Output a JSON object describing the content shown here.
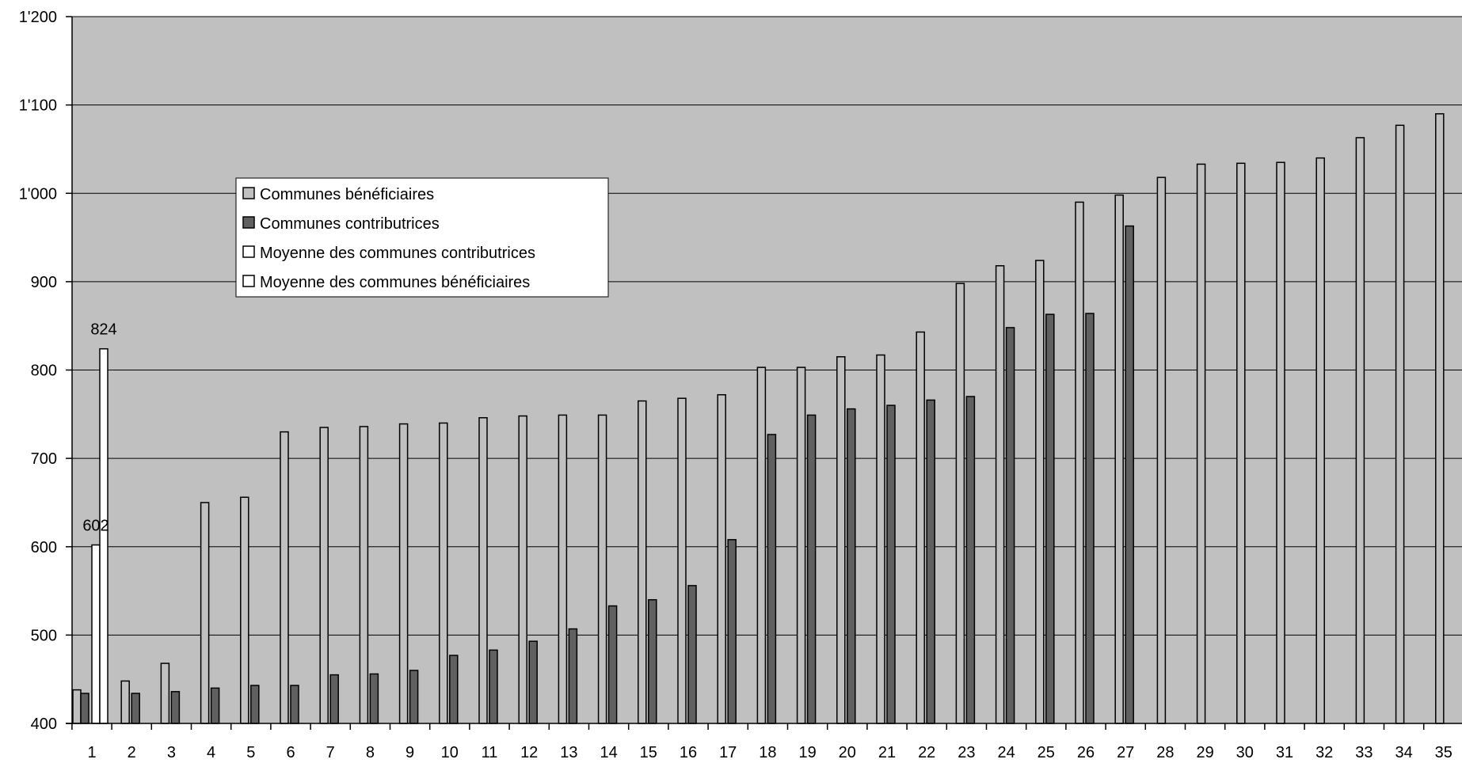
{
  "chart_data": {
    "type": "bar",
    "categories": [
      "1",
      "2",
      "3",
      "4",
      "5",
      "6",
      "7",
      "8",
      "9",
      "10",
      "11",
      "12",
      "13",
      "14",
      "15",
      "16",
      "17",
      "18",
      "19",
      "20",
      "21",
      "22",
      "23",
      "24",
      "25",
      "26",
      "27",
      "28",
      "29",
      "30",
      "31",
      "32",
      "33",
      "34",
      "35"
    ],
    "series": [
      {
        "name": "Communes bénéficiaires",
        "color": "#c0c0c0",
        "values": [
          438,
          448,
          468,
          650,
          656,
          730,
          735,
          736,
          739,
          740,
          746,
          748,
          749,
          749,
          765,
          768,
          772,
          803,
          803,
          815,
          817,
          843,
          898,
          918,
          924,
          990,
          998,
          1018,
          1033,
          1034,
          1035,
          1040,
          1063,
          1077,
          1090
        ]
      },
      {
        "name": "Communes contributrices",
        "color": "#606060",
        "values": [
          434,
          434,
          436,
          440,
          443,
          443,
          455,
          456,
          460,
          477,
          483,
          493,
          507,
          533,
          540,
          556,
          608,
          727,
          749,
          756,
          760,
          766,
          770,
          848,
          863,
          864,
          963,
          null,
          null,
          null,
          null,
          null,
          null,
          null,
          null
        ]
      },
      {
        "name": "Moyenne des communes contributrices",
        "color": "#ffffff",
        "values": [
          602,
          null,
          null,
          null,
          null,
          null,
          null,
          null,
          null,
          null,
          null,
          null,
          null,
          null,
          null,
          null,
          null,
          null,
          null,
          null,
          null,
          null,
          null,
          null,
          null,
          null,
          null,
          null,
          null,
          null,
          null,
          null,
          null,
          null,
          null
        ]
      },
      {
        "name": "Moyenne des communes bénéficiaires",
        "color": "#ffffff",
        "values": [
          824,
          null,
          null,
          null,
          null,
          null,
          null,
          null,
          null,
          null,
          null,
          null,
          null,
          null,
          null,
          null,
          null,
          null,
          null,
          null,
          null,
          null,
          null,
          null,
          null,
          null,
          null,
          null,
          null,
          null,
          null,
          null,
          null,
          null,
          null
        ]
      }
    ],
    "data_labels": [
      {
        "series": 2,
        "category": "1",
        "text": "602"
      },
      {
        "series": 3,
        "category": "1",
        "text": "824"
      }
    ],
    "y_ticks": [
      "400",
      "500",
      "600",
      "700",
      "800",
      "900",
      "1'000",
      "1'100",
      "1'200"
    ],
    "ylim": [
      400,
      1200
    ],
    "grid": true,
    "plot_background": "#c0c0c0",
    "legend_position": "upper-left-inside",
    "title": "",
    "xlabel": "",
    "ylabel": ""
  }
}
